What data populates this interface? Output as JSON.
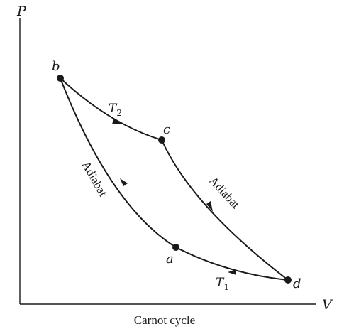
{
  "axes": {
    "y_label": "P",
    "x_label": "V"
  },
  "points": {
    "a": "a",
    "b": "b",
    "c": "c",
    "d": "d"
  },
  "curves": {
    "isotherm_hot": {
      "main": "T",
      "sub": "2"
    },
    "isotherm_cold": {
      "main": "T",
      "sub": "1"
    },
    "adiabat_right": "Adiabat",
    "adiabat_left": "Adiabat"
  },
  "caption": "Carnot cycle"
}
